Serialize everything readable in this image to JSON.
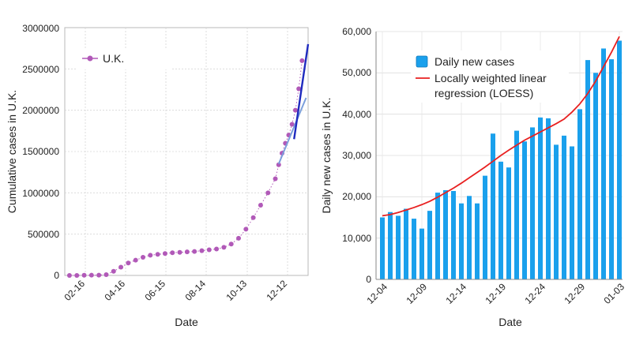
{
  "chart_data": [
    {
      "type": "scatter",
      "xlabel": "Date",
      "ylabel": "Cumulative cases in U.K.",
      "x_tick_labels": [
        "02-16",
        "04-16",
        "06-15",
        "08-14",
        "10-13",
        "12-12"
      ],
      "y_tick_labels": [
        "0",
        "500000",
        "1000000",
        "1500000",
        "2000000",
        "2500000",
        "3000000"
      ],
      "ylim": [
        0,
        3000000
      ],
      "grid": true,
      "legend_position": "top-left",
      "series": [
        {
          "name": "U.K.",
          "color": "#b159b8",
          "points": [
            [
              "01-31",
              0
            ],
            [
              "02-11",
              0
            ],
            [
              "02-22",
              2000
            ],
            [
              "03-04",
              3000
            ],
            [
              "03-15",
              4000
            ],
            [
              "03-26",
              10000
            ],
            [
              "04-06",
              50000
            ],
            [
              "04-17",
              100000
            ],
            [
              "04-28",
              150000
            ],
            [
              "05-09",
              185000
            ],
            [
              "05-20",
              220000
            ],
            [
              "05-31",
              245000
            ],
            [
              "06-11",
              255000
            ],
            [
              "06-22",
              265000
            ],
            [
              "07-03",
              275000
            ],
            [
              "07-14",
              280000
            ],
            [
              "07-25",
              285000
            ],
            [
              "08-05",
              290000
            ],
            [
              "08-16",
              300000
            ],
            [
              "08-27",
              310000
            ],
            [
              "09-07",
              320000
            ],
            [
              "09-18",
              340000
            ],
            [
              "09-29",
              380000
            ],
            [
              "10-10",
              450000
            ],
            [
              "10-21",
              560000
            ],
            [
              "11-01",
              700000
            ],
            [
              "11-12",
              850000
            ],
            [
              "11-23",
              1000000
            ],
            [
              "12-04",
              1170000
            ],
            [
              "12-09",
              1340000
            ],
            [
              "12-14",
              1480000
            ],
            [
              "12-19",
              1600000
            ],
            [
              "12-24",
              1700000
            ],
            [
              "12-29",
              1830000
            ],
            [
              "01-03",
              2000000
            ],
            [
              "01-08",
              2260000
            ],
            [
              "01-13",
              2600000
            ]
          ]
        }
      ],
      "fit_lines": [
        {
          "color": "#7b9fdc",
          "x": [
            "12-09",
            "01-19"
          ],
          "y": [
            1350000,
            2150000
          ]
        },
        {
          "color": "#1f2bbf",
          "x": [
            "01-01",
            "01-22"
          ],
          "y": [
            1650000,
            2800000
          ]
        }
      ]
    },
    {
      "type": "bar",
      "xlabel": "Date",
      "ylabel": "Daily new cases in U.K.",
      "categories": [
        "12-04",
        "12-05",
        "12-06",
        "12-07",
        "12-08",
        "12-09",
        "12-10",
        "12-11",
        "12-12",
        "12-13",
        "12-14",
        "12-15",
        "12-16",
        "12-17",
        "12-18",
        "12-19",
        "12-20",
        "12-21",
        "12-22",
        "12-23",
        "12-24",
        "12-25",
        "12-26",
        "12-27",
        "12-28",
        "12-29",
        "12-30",
        "12-31",
        "01-01",
        "01-02",
        "01-03"
      ],
      "x_tick_labels": [
        "12-04",
        "12-09",
        "12-14",
        "12-19",
        "12-24",
        "12-29",
        "01-03"
      ],
      "y_tick_labels": [
        "0",
        "10,000",
        "20,000",
        "30,000",
        "40,000",
        "50,000",
        "60,000"
      ],
      "ylim": [
        0,
        60000
      ],
      "grid": true,
      "legend_position": "top-left",
      "series": [
        {
          "name": "Daily new cases",
          "color": "#1aa0ec",
          "values": [
            15000,
            16300,
            15400,
            17100,
            14700,
            12300,
            16600,
            21000,
            21600,
            21400,
            18400,
            20200,
            18400,
            25100,
            35300,
            28500,
            27100,
            36000,
            33400,
            36800,
            39200,
            39000,
            32600,
            34800,
            32200,
            41200,
            53100,
            50000,
            55900,
            53300,
            57800
          ]
        },
        {
          "name": "Locally weighted linear regression (LOESS)",
          "color": "#e82020",
          "values": [
            15400,
            15700,
            16200,
            16800,
            17400,
            18100,
            18900,
            19900,
            21000,
            22100,
            23300,
            24600,
            25900,
            27200,
            28600,
            30000,
            31300,
            32500,
            33700,
            34700,
            35700,
            36700,
            37700,
            38800,
            40500,
            42500,
            45000,
            48000,
            51500,
            55000,
            58800
          ]
        }
      ]
    }
  ]
}
